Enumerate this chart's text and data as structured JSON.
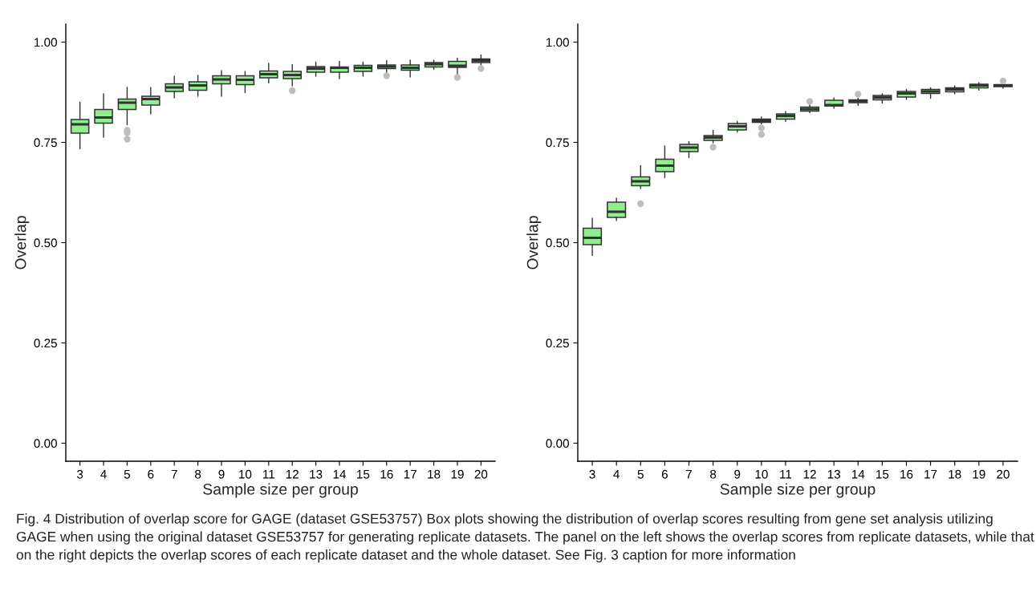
{
  "chart_data": [
    {
      "type": "box",
      "xlabel": "Sample size per group",
      "ylabel": "Overlap",
      "categories": [
        "3",
        "4",
        "5",
        "6",
        "7",
        "8",
        "9",
        "10",
        "11",
        "12",
        "13",
        "14",
        "15",
        "16",
        "17",
        "18",
        "19",
        "20"
      ],
      "color": "#90ee90",
      "ylim": [
        -0.045,
        1.045
      ],
      "yticks": [
        {
          "value": 0,
          "label": "0.00"
        },
        {
          "value": 0.25,
          "label": "0.25"
        },
        {
          "value": 0.5,
          "label": "0.50"
        },
        {
          "value": 0.75,
          "label": "0.75"
        },
        {
          "value": 1,
          "label": "1.00"
        }
      ],
      "grid": false,
      "boxes": [
        {
          "low": 0.734,
          "q1": 0.773,
          "median": 0.795,
          "q3": 0.807,
          "high": 0.85
        },
        {
          "low": 0.763,
          "q1": 0.798,
          "median": 0.812,
          "q3": 0.832,
          "high": 0.871
        },
        {
          "low": 0.794,
          "q1": 0.832,
          "median": 0.849,
          "q3": 0.858,
          "high": 0.887,
          "outliers": [
            0.78,
            0.774,
            0.758
          ]
        },
        {
          "low": 0.821,
          "q1": 0.843,
          "median": 0.858,
          "q3": 0.865,
          "high": 0.887
        },
        {
          "low": 0.861,
          "q1": 0.877,
          "median": 0.887,
          "q3": 0.896,
          "high": 0.915
        },
        {
          "low": 0.865,
          "q1": 0.88,
          "median": 0.892,
          "q3": 0.901,
          "high": 0.917
        },
        {
          "low": 0.865,
          "q1": 0.896,
          "median": 0.907,
          "q3": 0.916,
          "high": 0.929
        },
        {
          "low": 0.874,
          "q1": 0.894,
          "median": 0.906,
          "q3": 0.916,
          "high": 0.927
        },
        {
          "low": 0.898,
          "q1": 0.911,
          "median": 0.92,
          "q3": 0.928,
          "high": 0.947
        },
        {
          "low": 0.891,
          "q1": 0.909,
          "median": 0.918,
          "q3": 0.927,
          "high": 0.944,
          "outliers": [
            0.879
          ]
        },
        {
          "low": 0.915,
          "q1": 0.925,
          "median": 0.934,
          "q3": 0.939,
          "high": 0.95
        },
        {
          "low": 0.909,
          "q1": 0.925,
          "median": 0.936,
          "q3": 0.938,
          "high": 0.952
        },
        {
          "low": 0.915,
          "q1": 0.927,
          "median": 0.936,
          "q3": 0.942,
          "high": 0.95
        },
        {
          "low": 0.923,
          "q1": 0.934,
          "median": 0.939,
          "q3": 0.943,
          "high": 0.954,
          "outliers": [
            0.916
          ]
        },
        {
          "low": 0.913,
          "q1": 0.93,
          "median": 0.936,
          "q3": 0.943,
          "high": 0.955
        },
        {
          "low": 0.932,
          "q1": 0.938,
          "median": 0.945,
          "q3": 0.949,
          "high": 0.955
        },
        {
          "low": 0.918,
          "q1": 0.937,
          "median": 0.941,
          "q3": 0.952,
          "high": 0.96,
          "outliers": [
            0.912
          ]
        },
        {
          "low": 0.943,
          "q1": 0.949,
          "median": 0.954,
          "q3": 0.958,
          "high": 0.968,
          "outliers": [
            0.934
          ]
        }
      ]
    },
    {
      "type": "box",
      "xlabel": "Sample size per group",
      "ylabel": "Overlap",
      "categories": [
        "3",
        "4",
        "5",
        "6",
        "7",
        "8",
        "9",
        "10",
        "11",
        "12",
        "13",
        "14",
        "15",
        "16",
        "17",
        "18",
        "19",
        "20"
      ],
      "color": "#90ee90",
      "ylim": [
        -0.045,
        1.045
      ],
      "yticks": [
        {
          "value": 0,
          "label": "0.00"
        },
        {
          "value": 0.25,
          "label": "0.25"
        },
        {
          "value": 0.5,
          "label": "0.50"
        },
        {
          "value": 0.75,
          "label": "0.75"
        },
        {
          "value": 1,
          "label": "1.00"
        }
      ],
      "grid": false,
      "boxes": [
        {
          "low": 0.468,
          "q1": 0.495,
          "median": 0.512,
          "q3": 0.536,
          "high": 0.561
        },
        {
          "low": 0.555,
          "q1": 0.563,
          "median": 0.577,
          "q3": 0.601,
          "high": 0.611
        },
        {
          "low": 0.635,
          "q1": 0.642,
          "median": 0.653,
          "q3": 0.664,
          "high": 0.692,
          "outliers": [
            0.597
          ]
        },
        {
          "low": 0.662,
          "q1": 0.677,
          "median": 0.692,
          "q3": 0.708,
          "high": 0.741
        },
        {
          "low": 0.712,
          "q1": 0.727,
          "median": 0.737,
          "q3": 0.745,
          "high": 0.752
        },
        {
          "low": 0.749,
          "q1": 0.755,
          "median": 0.762,
          "q3": 0.767,
          "high": 0.78,
          "outliers": [
            0.738
          ]
        },
        {
          "low": 0.776,
          "q1": 0.781,
          "median": 0.79,
          "q3": 0.797,
          "high": 0.802
        },
        {
          "low": 0.796,
          "q1": 0.8,
          "median": 0.804,
          "q3": 0.808,
          "high": 0.813,
          "outliers": [
            0.786,
            0.77
          ]
        },
        {
          "low": 0.802,
          "q1": 0.808,
          "median": 0.816,
          "q3": 0.821,
          "high": 0.827
        },
        {
          "low": 0.824,
          "q1": 0.828,
          "median": 0.833,
          "q3": 0.838,
          "high": 0.847,
          "outliers": [
            0.852
          ]
        },
        {
          "low": 0.835,
          "q1": 0.841,
          "median": 0.843,
          "q3": 0.855,
          "high": 0.861
        },
        {
          "low": 0.842,
          "q1": 0.849,
          "median": 0.853,
          "q3": 0.856,
          "high": 0.86,
          "outliers": [
            0.87
          ]
        },
        {
          "low": 0.848,
          "q1": 0.856,
          "median": 0.862,
          "q3": 0.867,
          "high": 0.871
        },
        {
          "low": 0.857,
          "q1": 0.863,
          "median": 0.872,
          "q3": 0.877,
          "high": 0.882
        },
        {
          "low": 0.86,
          "q1": 0.872,
          "median": 0.877,
          "q3": 0.882,
          "high": 0.886
        },
        {
          "low": 0.871,
          "q1": 0.876,
          "median": 0.882,
          "q3": 0.886,
          "high": 0.891
        },
        {
          "low": 0.88,
          "q1": 0.886,
          "median": 0.892,
          "q3": 0.895,
          "high": 0.899
        },
        {
          "low": 0.885,
          "q1": 0.889,
          "median": 0.892,
          "q3": 0.894,
          "high": 0.898,
          "outliers": [
            0.903
          ]
        }
      ],
      "annotations": [
        "Fig. 4 Distribution of overlap score for GAGE (dataset GSE53757) Box plots showing the distribution of overlap scores resulting from gene set analysis utilizing GAGE when using the original dataset GSE53757 for generating replicate datasets. The panel on the left shows the overlap scores from replicate datasets, while that on the right depicts the overlap scores of each replicate dataset and the whole dataset. See Fig. 3 caption for more information"
      ]
    }
  ]
}
